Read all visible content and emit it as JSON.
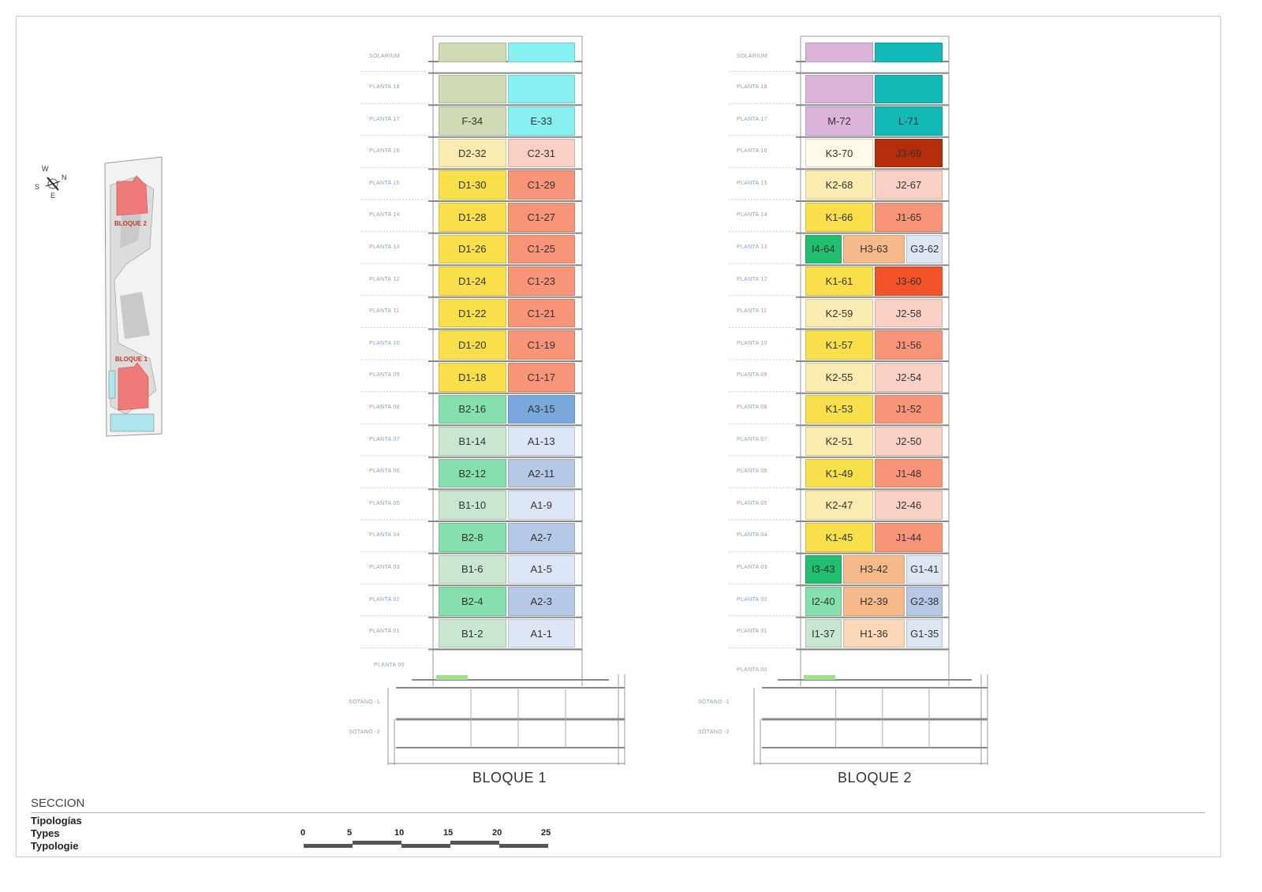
{
  "labels": {
    "seccion": "SECCION",
    "tipologias": [
      "Tipologías",
      "Types",
      "Typologie"
    ],
    "scale": [
      "0",
      "5",
      "10",
      "15",
      "20",
      "25"
    ],
    "site_bloque2": "BLOQUE 2",
    "site_bloque1": "BLOQUE 1",
    "compass": [
      "N",
      "W",
      "S",
      "E"
    ]
  },
  "colors": {
    "pale_green": "#c8e6d0",
    "green": "#85e0ad",
    "dark_green": "#20c070",
    "pale_blue": "#dde6f5",
    "blue": "#b5c8e6",
    "mid_blue": "#7aa8dc",
    "yellow": "#f9e04a",
    "pale_yellow": "#faecb0",
    "cream": "#fffbe8",
    "salmon": "#f89478",
    "pale_salmon": "#fad0c4",
    "peach": "#f5b98a",
    "pale_peach": "#fbd9b8",
    "olive": "#cfd9b4",
    "cyan": "#86f0f0",
    "mauve": "#dcb4d9",
    "teal": "#12b9b6",
    "dark_red": "#b62d0a",
    "orange_red": "#f4532a"
  },
  "blocks": [
    {
      "title": "BLOQUE 1",
      "floors": [
        {
          "label": "SOLARIUM",
          "units": [
            {
              "code": "",
              "color": "olive"
            },
            {
              "code": "",
              "color": "cyan"
            }
          ]
        },
        {
          "label": "PLANTA 18",
          "units": [
            {
              "code": "",
              "color": "olive"
            },
            {
              "code": "",
              "color": "cyan"
            }
          ]
        },
        {
          "label": "PLANTA 17",
          "units": [
            {
              "code": "F-34",
              "color": "olive"
            },
            {
              "code": "E-33",
              "color": "cyan"
            }
          ]
        },
        {
          "label": "PLANTA 16",
          "units": [
            {
              "code": "D2-32",
              "color": "pale_yellow"
            },
            {
              "code": "C2-31",
              "color": "pale_salmon"
            }
          ]
        },
        {
          "label": "PLANTA 15",
          "units": [
            {
              "code": "D1-30",
              "color": "yellow"
            },
            {
              "code": "C1-29",
              "color": "salmon"
            }
          ]
        },
        {
          "label": "PLANTA 14",
          "units": [
            {
              "code": "D1-28",
              "color": "yellow"
            },
            {
              "code": "C1-27",
              "color": "salmon"
            }
          ]
        },
        {
          "label": "PLANTA 13",
          "units": [
            {
              "code": "D1-26",
              "color": "yellow"
            },
            {
              "code": "C1-25",
              "color": "salmon"
            }
          ]
        },
        {
          "label": "PLANTA 12",
          "units": [
            {
              "code": "D1-24",
              "color": "yellow"
            },
            {
              "code": "C1-23",
              "color": "salmon"
            }
          ]
        },
        {
          "label": "PLANTA 11",
          "units": [
            {
              "code": "D1-22",
              "color": "yellow"
            },
            {
              "code": "C1-21",
              "color": "salmon"
            }
          ]
        },
        {
          "label": "PLANTA 10",
          "units": [
            {
              "code": "D1-20",
              "color": "yellow"
            },
            {
              "code": "C1-19",
              "color": "salmon"
            }
          ]
        },
        {
          "label": "PLANTA 09",
          "units": [
            {
              "code": "D1-18",
              "color": "yellow"
            },
            {
              "code": "C1-17",
              "color": "salmon"
            }
          ]
        },
        {
          "label": "PLANTA 08",
          "units": [
            {
              "code": "B2-16",
              "color": "green"
            },
            {
              "code": "A3-15",
              "color": "mid_blue"
            }
          ]
        },
        {
          "label": "PLANTA 07",
          "units": [
            {
              "code": "B1-14",
              "color": "pale_green"
            },
            {
              "code": "A1-13",
              "color": "pale_blue"
            }
          ]
        },
        {
          "label": "PLANTA 06",
          "units": [
            {
              "code": "B2-12",
              "color": "green"
            },
            {
              "code": "A2-11",
              "color": "blue"
            }
          ]
        },
        {
          "label": "PLANTA 05",
          "units": [
            {
              "code": "B1-10",
              "color": "pale_green"
            },
            {
              "code": "A1-9",
              "color": "pale_blue"
            }
          ]
        },
        {
          "label": "PLANTA 04",
          "units": [
            {
              "code": "B2-8",
              "color": "green"
            },
            {
              "code": "A2-7",
              "color": "blue"
            }
          ]
        },
        {
          "label": "PLANTA 03",
          "units": [
            {
              "code": "B1-6",
              "color": "pale_green"
            },
            {
              "code": "A1-5",
              "color": "pale_blue"
            }
          ]
        },
        {
          "label": "PLANTA 02",
          "units": [
            {
              "code": "B2-4",
              "color": "green"
            },
            {
              "code": "A2-3",
              "color": "blue"
            }
          ]
        },
        {
          "label": "PLANTA 01",
          "units": [
            {
              "code": "B1-2",
              "color": "pale_green"
            },
            {
              "code": "A1-1",
              "color": "pale_blue"
            }
          ]
        }
      ],
      "lower_labels": [
        "PLANTA 00",
        "SÓTANO -1",
        "SÓTANO -2"
      ]
    },
    {
      "title": "BLOQUE 2",
      "floors": [
        {
          "label": "SOLARIUM",
          "units": [
            {
              "code": "",
              "color": "mauve"
            },
            {
              "code": "",
              "color": "teal"
            }
          ]
        },
        {
          "label": "PLANTA 18",
          "units": [
            {
              "code": "",
              "color": "mauve"
            },
            {
              "code": "",
              "color": "teal"
            }
          ]
        },
        {
          "label": "PLANTA 17",
          "units": [
            {
              "code": "M-72",
              "color": "mauve"
            },
            {
              "code": "L-71",
              "color": "teal"
            }
          ]
        },
        {
          "label": "PLANTA 16",
          "units": [
            {
              "code": "K3-70",
              "color": "cream"
            },
            {
              "code": "J3-69",
              "color": "dark_red"
            }
          ]
        },
        {
          "label": "PLANTA 15",
          "units": [
            {
              "code": "K2-68",
              "color": "pale_yellow"
            },
            {
              "code": "J2-67",
              "color": "pale_salmon"
            }
          ]
        },
        {
          "label": "PLANTA 14",
          "units": [
            {
              "code": "K1-66",
              "color": "yellow"
            },
            {
              "code": "J1-65",
              "color": "salmon"
            }
          ]
        },
        {
          "label": "PLANTA 13",
          "units": [
            {
              "code": "I4-64",
              "color": "dark_green"
            },
            {
              "code": "H3-63",
              "color": "peach"
            },
            {
              "code": "G3-62",
              "color": "pale_blue"
            }
          ]
        },
        {
          "label": "PLANTA 12",
          "units": [
            {
              "code": "K1-61",
              "color": "yellow"
            },
            {
              "code": "J3-60",
              "color": "orange_red"
            }
          ]
        },
        {
          "label": "PLANTA 11",
          "units": [
            {
              "code": "K2-59",
              "color": "pale_yellow"
            },
            {
              "code": "J2-58",
              "color": "pale_salmon"
            }
          ]
        },
        {
          "label": "PLANTA 10",
          "units": [
            {
              "code": "K1-57",
              "color": "yellow"
            },
            {
              "code": "J1-56",
              "color": "salmon"
            }
          ]
        },
        {
          "label": "PLANTA 09",
          "units": [
            {
              "code": "K2-55",
              "color": "pale_yellow"
            },
            {
              "code": "J2-54",
              "color": "pale_salmon"
            }
          ]
        },
        {
          "label": "PLANTA 08",
          "units": [
            {
              "code": "K1-53",
              "color": "yellow"
            },
            {
              "code": "J1-52",
              "color": "salmon"
            }
          ]
        },
        {
          "label": "PLANTA 07",
          "units": [
            {
              "code": "K2-51",
              "color": "pale_yellow"
            },
            {
              "code": "J2-50",
              "color": "pale_salmon"
            }
          ]
        },
        {
          "label": "PLANTA 06",
          "units": [
            {
              "code": "K1-49",
              "color": "yellow"
            },
            {
              "code": "J1-48",
              "color": "salmon"
            }
          ]
        },
        {
          "label": "PLANTA 05",
          "units": [
            {
              "code": "K2-47",
              "color": "pale_yellow"
            },
            {
              "code": "J2-46",
              "color": "pale_salmon"
            }
          ]
        },
        {
          "label": "PLANTA 04",
          "units": [
            {
              "code": "K1-45",
              "color": "yellow"
            },
            {
              "code": "J1-44",
              "color": "salmon"
            }
          ]
        },
        {
          "label": "PLANTA 03",
          "units": [
            {
              "code": "I3-43",
              "color": "dark_green"
            },
            {
              "code": "H3-42",
              "color": "peach"
            },
            {
              "code": "G1-41",
              "color": "pale_blue"
            }
          ]
        },
        {
          "label": "PLANTA 02",
          "units": [
            {
              "code": "I2-40",
              "color": "green"
            },
            {
              "code": "H2-39",
              "color": "peach"
            },
            {
              "code": "G2-38",
              "color": "blue"
            }
          ]
        },
        {
          "label": "PLANTA 01",
          "units": [
            {
              "code": "I1-37",
              "color": "pale_green"
            },
            {
              "code": "H1-36",
              "color": "pale_peach"
            },
            {
              "code": "G1-35",
              "color": "pale_blue"
            }
          ]
        }
      ],
      "lower_labels": [
        "PLANTA 00",
        "SÓTANO -1",
        "SÓTANO -2"
      ]
    }
  ]
}
